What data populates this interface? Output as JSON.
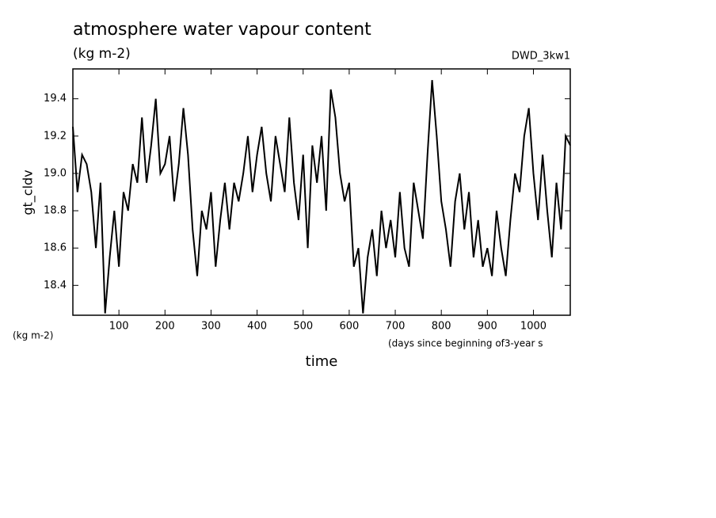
{
  "chart_data": {
    "type": "line",
    "title": "atmosphere water vapour content",
    "subtitle": "(kg m-2)",
    "annotation": "DWD_3kw1",
    "ylabel": "gt_cldv",
    "yunits": "(kg m-2)",
    "xlabel": "time",
    "xunits": "(days since beginning of3-year s",
    "color": "#000000",
    "xlim": [
      0,
      1080
    ],
    "ylim": [
      18.24,
      19.56
    ],
    "xticks": [
      100,
      200,
      300,
      400,
      500,
      600,
      700,
      800,
      900,
      1000
    ],
    "yticks": [
      {
        "value": 18.4,
        "label": "18.4"
      },
      {
        "value": 18.6,
        "label": "18.6"
      },
      {
        "value": 18.8,
        "label": "18.8"
      },
      {
        "value": 19.0,
        "label": "19.0"
      },
      {
        "value": 19.2,
        "label": "19.2"
      },
      {
        "value": 19.4,
        "label": "19.4"
      }
    ],
    "x": [
      0,
      10,
      20,
      30,
      40,
      50,
      60,
      70,
      80,
      90,
      100,
      110,
      120,
      130,
      140,
      150,
      160,
      170,
      180,
      190,
      200,
      210,
      220,
      230,
      240,
      250,
      260,
      270,
      280,
      290,
      300,
      310,
      320,
      330,
      340,
      350,
      360,
      370,
      380,
      390,
      400,
      410,
      420,
      430,
      440,
      450,
      460,
      470,
      480,
      490,
      500,
      510,
      520,
      530,
      540,
      550,
      560,
      570,
      580,
      590,
      600,
      610,
      620,
      630,
      640,
      650,
      660,
      670,
      680,
      690,
      700,
      710,
      720,
      730,
      740,
      750,
      760,
      770,
      780,
      790,
      800,
      810,
      820,
      830,
      840,
      850,
      860,
      870,
      880,
      890,
      900,
      910,
      920,
      930,
      940,
      950,
      960,
      970,
      980,
      990,
      1000,
      1010,
      1020,
      1030,
      1040,
      1050,
      1060,
      1070,
      1080
    ],
    "values": [
      19.25,
      18.9,
      19.1,
      19.05,
      18.9,
      18.6,
      18.95,
      18.25,
      18.55,
      18.8,
      18.5,
      18.9,
      18.8,
      19.05,
      18.95,
      19.3,
      18.95,
      19.15,
      19.4,
      19.0,
      19.05,
      19.2,
      18.85,
      19.05,
      19.35,
      19.1,
      18.7,
      18.45,
      18.8,
      18.7,
      18.9,
      18.5,
      18.75,
      18.95,
      18.7,
      18.95,
      18.85,
      19.0,
      19.2,
      18.9,
      19.1,
      19.25,
      19.0,
      18.85,
      19.2,
      19.05,
      18.9,
      19.3,
      18.95,
      18.75,
      19.1,
      18.6,
      19.15,
      18.95,
      19.2,
      18.8,
      19.45,
      19.3,
      19.0,
      18.85,
      18.95,
      18.5,
      18.6,
      18.25,
      18.55,
      18.7,
      18.45,
      18.8,
      18.6,
      18.75,
      18.55,
      18.9,
      18.6,
      18.5,
      18.95,
      18.8,
      18.65,
      19.1,
      19.5,
      19.2,
      18.85,
      18.7,
      18.5,
      18.85,
      19.0,
      18.7,
      18.9,
      18.55,
      18.75,
      18.5,
      18.6,
      18.45,
      18.8,
      18.6,
      18.45,
      18.75,
      19.0,
      18.9,
      19.2,
      19.35,
      19.0,
      18.75,
      19.1,
      18.8,
      18.55,
      18.95,
      18.7,
      19.2,
      19.15
    ]
  }
}
